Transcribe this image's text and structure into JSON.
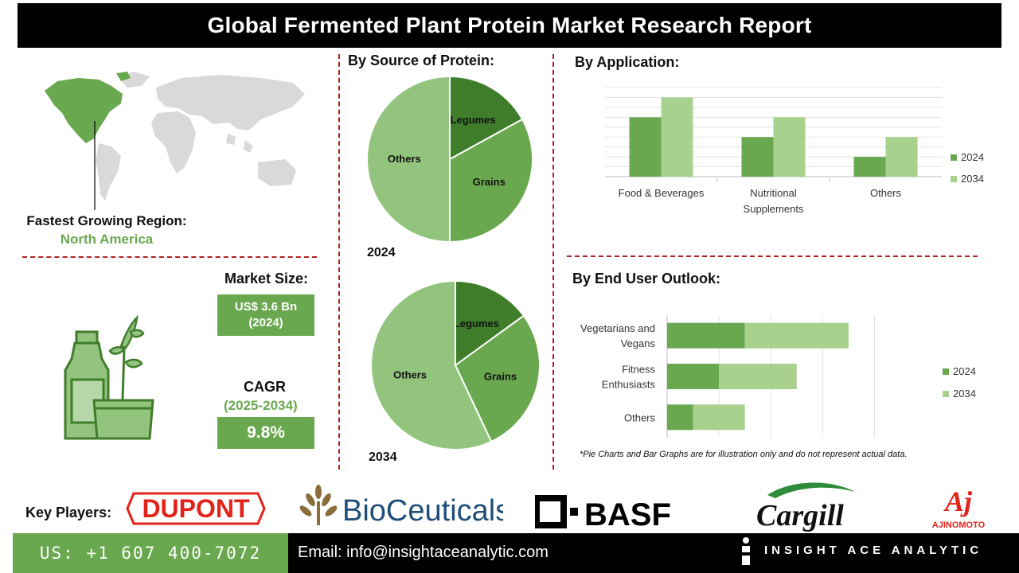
{
  "header": {
    "title": "Global Fermented Plant Protein Market Research Report"
  },
  "region": {
    "label": "Fastest Growing Region:",
    "value": "North America"
  },
  "market": {
    "size_label": "Market Size:",
    "size_value": "US$ 3.6 Bn",
    "size_year": "(2024)",
    "cagr_label": "CAGR",
    "cagr_period": "(2025-2034)",
    "cagr_value": "9.8%"
  },
  "sections": {
    "source": "By Source of Protein:",
    "application": "By  Application:",
    "end_user": "By End User Outlook:"
  },
  "colors": {
    "dark_green": "#6aa84f",
    "mid_green": "#5a9e3c",
    "light_green": "#93c47d",
    "pale_green": "#a9d18e",
    "darkest_green": "#3f7d2b",
    "divider_red": "#b22222"
  },
  "chart_data": [
    {
      "type": "pie",
      "title": "2024",
      "categories": [
        "Legumes",
        "Grains",
        "Others"
      ],
      "values": [
        17,
        33,
        50
      ]
    },
    {
      "type": "pie",
      "title": "2034",
      "categories": [
        "Legumes",
        "Grains",
        "Others"
      ],
      "values": [
        15,
        28,
        57
      ]
    },
    {
      "type": "bar",
      "categories": [
        "Food & Beverages",
        "Nutritional Supplements",
        "Others"
      ],
      "category_lines": [
        [
          "Food & Beverages"
        ],
        [
          "Nutritional",
          "Supplements"
        ],
        [
          "Others"
        ]
      ],
      "series": [
        {
          "name": "2024",
          "values": [
            3,
            2,
            1
          ]
        },
        {
          "name": "2034",
          "values": [
            4,
            3,
            2
          ]
        }
      ],
      "ylim": [
        0,
        4.5
      ],
      "grid": true,
      "legend": "right"
    },
    {
      "type": "bar",
      "orientation": "horizontal",
      "stacked": true,
      "categories": [
        "Vegetarians and Vegans",
        "Fitness Enthusiasts",
        "Others"
      ],
      "category_lines": [
        [
          "Vegetarians and",
          "Vegans"
        ],
        [
          "Fitness",
          "Enthusiasts"
        ],
        [
          "Others"
        ]
      ],
      "series": [
        {
          "name": "2024",
          "values": [
            1.5,
            1.0,
            0.5
          ]
        },
        {
          "name": "2034",
          "values": [
            2.0,
            1.5,
            1.0
          ]
        }
      ],
      "xlim": [
        0,
        4.5
      ],
      "grid": true,
      "legend": "right"
    }
  ],
  "footnote": "*Pie Charts and Bar Graphs are for illustration only and do not represent actual data.",
  "key_players": {
    "label": "Key Players:",
    "logos": [
      "DUPONT",
      "BioCeuticals",
      "BASF",
      "Cargill",
      "AJINOMOTO"
    ]
  },
  "footer": {
    "phone": "US: +1 607 400-7072",
    "email": "Email: info@insightaceanalytic.com",
    "brand": "INSIGHT ACE ANALYTIC"
  }
}
